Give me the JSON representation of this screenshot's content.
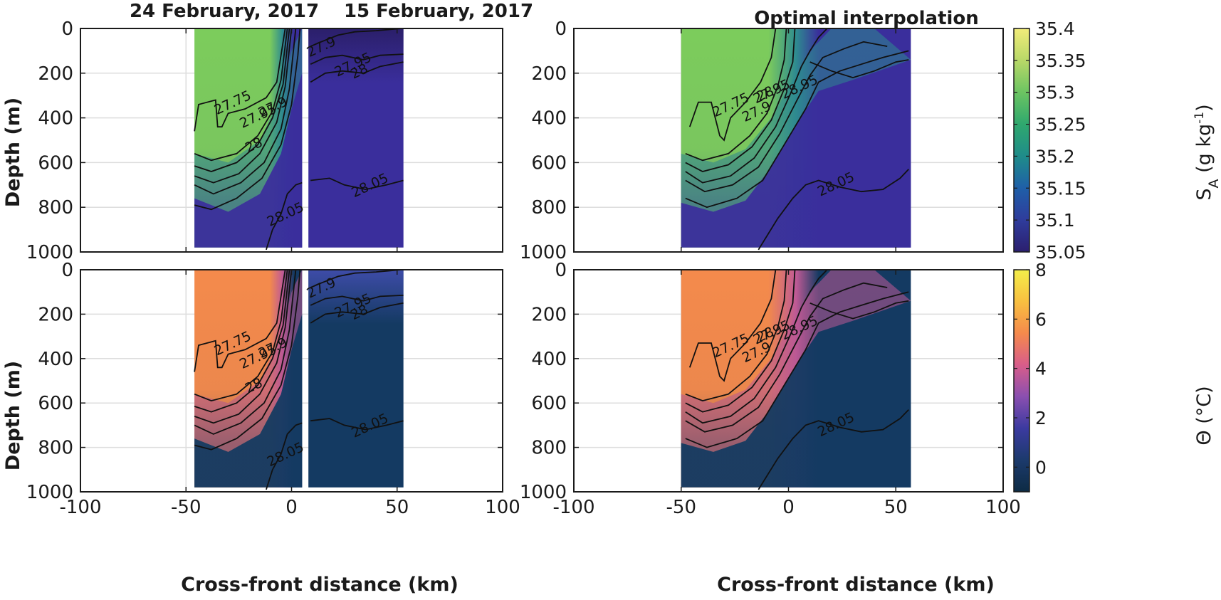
{
  "chart_data": [
    {
      "id": "salinity-observed",
      "type": "heatmap",
      "titles": [
        "24 February, 2017",
        "15 February, 2017"
      ],
      "xlabel": "",
      "ylabel": "Depth (m)",
      "xlim": [
        -100,
        100
      ],
      "ylim": [
        0,
        1000
      ],
      "y_reversed": true,
      "x_ticks": [
        -100,
        -50,
        0,
        50,
        100
      ],
      "y_ticks": [
        0,
        200,
        400,
        600,
        800,
        1000
      ],
      "grid": true,
      "colorbar": "salinity",
      "field": "salinity",
      "sections": [
        {
          "name": "24 February, 2017",
          "x_range": [
            -46,
            5
          ]
        },
        {
          "name": "15 February, 2017",
          "x_range": [
            8,
            53
          ]
        }
      ],
      "contour_labels": [
        {
          "text": "27.75",
          "x": -27,
          "y": 350
        },
        {
          "text": "27.9",
          "x": -8,
          "y": 370
        },
        {
          "text": "27.95",
          "x": -15,
          "y": 410
        },
        {
          "text": "28",
          "x": -17,
          "y": 540
        },
        {
          "text": "28.05",
          "x": -2,
          "y": 850
        },
        {
          "text": "27.9",
          "x": 15,
          "y": 100
        },
        {
          "text": "27.95",
          "x": 30,
          "y": 180
        },
        {
          "text": "28",
          "x": 33,
          "y": 210
        },
        {
          "text": "28.05",
          "x": 38,
          "y": 720
        }
      ]
    },
    {
      "id": "salinity-oi",
      "type": "heatmap",
      "title": "Optimal interpolation",
      "xlabel": "",
      "ylabel": "",
      "xlim": [
        -100,
        100
      ],
      "ylim": [
        0,
        1000
      ],
      "y_reversed": true,
      "x_ticks": [
        -100,
        -50,
        0,
        50,
        100
      ],
      "y_ticks": [
        0,
        200,
        400,
        600,
        800,
        1000
      ],
      "grid": true,
      "colorbar": "salinity",
      "field": "salinity",
      "sections": [
        {
          "name": "Optimal interpolation",
          "x_range": [
            -50,
            57
          ]
        }
      ],
      "contour_labels": [
        {
          "text": "27.75",
          "x": -26,
          "y": 360
        },
        {
          "text": "27.9",
          "x": -14,
          "y": 390
        },
        {
          "text": "27.95",
          "x": -7,
          "y": 300
        },
        {
          "text": "28",
          "x": -10,
          "y": 310
        },
        {
          "text": "28.95",
          "x": 6,
          "y": 280
        },
        {
          "text": "28.05",
          "x": 23,
          "y": 715
        }
      ]
    },
    {
      "id": "temperature-observed",
      "type": "heatmap",
      "xlabel": "Cross-front distance (km)",
      "ylabel": "Depth (m)",
      "xlim": [
        -100,
        100
      ],
      "ylim": [
        0,
        1000
      ],
      "y_reversed": true,
      "x_ticks": [
        -100,
        -50,
        0,
        50,
        100
      ],
      "y_ticks": [
        0,
        200,
        400,
        600,
        800,
        1000
      ],
      "grid": true,
      "colorbar": "temperature",
      "field": "temperature",
      "sections": [
        {
          "name": "24 February, 2017",
          "x_range": [
            -46,
            5
          ]
        },
        {
          "name": "15 February, 2017",
          "x_range": [
            8,
            53
          ]
        }
      ],
      "contour_labels": [
        {
          "text": "27.75",
          "x": -27,
          "y": 350
        },
        {
          "text": "27.9",
          "x": -8,
          "y": 370
        },
        {
          "text": "27.95",
          "x": -15,
          "y": 410
        },
        {
          "text": "28",
          "x": -17,
          "y": 540
        },
        {
          "text": "28.05",
          "x": -2,
          "y": 850
        },
        {
          "text": "27.9",
          "x": 15,
          "y": 100
        },
        {
          "text": "27.95",
          "x": 30,
          "y": 180
        },
        {
          "text": "28",
          "x": 33,
          "y": 210
        },
        {
          "text": "28.05",
          "x": 38,
          "y": 720
        }
      ]
    },
    {
      "id": "temperature-oi",
      "type": "heatmap",
      "xlabel": "Cross-front distance (km)",
      "ylabel": "",
      "xlim": [
        -100,
        100
      ],
      "ylim": [
        0,
        1000
      ],
      "y_reversed": true,
      "x_ticks": [
        -100,
        -50,
        0,
        50,
        100
      ],
      "y_ticks": [
        0,
        200,
        400,
        600,
        800,
        1000
      ],
      "grid": true,
      "colorbar": "temperature",
      "field": "temperature",
      "sections": [
        {
          "name": "Optimal interpolation",
          "x_range": [
            -50,
            57
          ]
        }
      ],
      "contour_labels": [
        {
          "text": "27.75",
          "x": -26,
          "y": 360
        },
        {
          "text": "27.9",
          "x": -14,
          "y": 390
        },
        {
          "text": "27.95",
          "x": -7,
          "y": 300
        },
        {
          "text": "28",
          "x": -10,
          "y": 310
        },
        {
          "text": "28.95",
          "x": 6,
          "y": 280
        },
        {
          "text": "28.05",
          "x": 23,
          "y": 715
        }
      ]
    }
  ],
  "colorbars": {
    "salinity": {
      "label_main": "S",
      "label_sub": "A",
      "label_unit": " (g kg",
      "label_exp": "-1",
      "label_close": ")",
      "range": [
        35.05,
        35.4
      ],
      "ticks": [
        "35.05",
        "35.1",
        "35.15",
        "35.2",
        "35.25",
        "35.3",
        "35.35",
        "35.4"
      ],
      "tick_values": [
        35.05,
        35.1,
        35.15,
        35.2,
        35.25,
        35.3,
        35.35,
        35.4
      ],
      "colors": [
        "#2b1f6e",
        "#2f3c9c",
        "#1f5fa8",
        "#1f8c8a",
        "#2fa86e",
        "#6cc462",
        "#b8d868",
        "#f2ec7a"
      ],
      "warm_color": "#7ccc5c",
      "mid_color": "#2e8c90",
      "cold_color": "#3a2e9c",
      "surface_cold": "#2b1f6a"
    },
    "temperature": {
      "label": "Θ (°C)",
      "range": [
        -1,
        8
      ],
      "ticks": [
        "0",
        "2",
        "4",
        "6",
        "8"
      ],
      "tick_values": [
        0,
        2,
        4,
        6,
        8
      ],
      "colors": [
        "#0d2b44",
        "#1c3a6c",
        "#3b3aa0",
        "#8a4fb0",
        "#d85d8a",
        "#f58a4c",
        "#f8c040",
        "#f4ee4a"
      ],
      "warm_color": "#f48a4c",
      "mid_color": "#c05a96",
      "cold_color": "#143a62",
      "surface_cold": "#3e4ca8"
    }
  }
}
